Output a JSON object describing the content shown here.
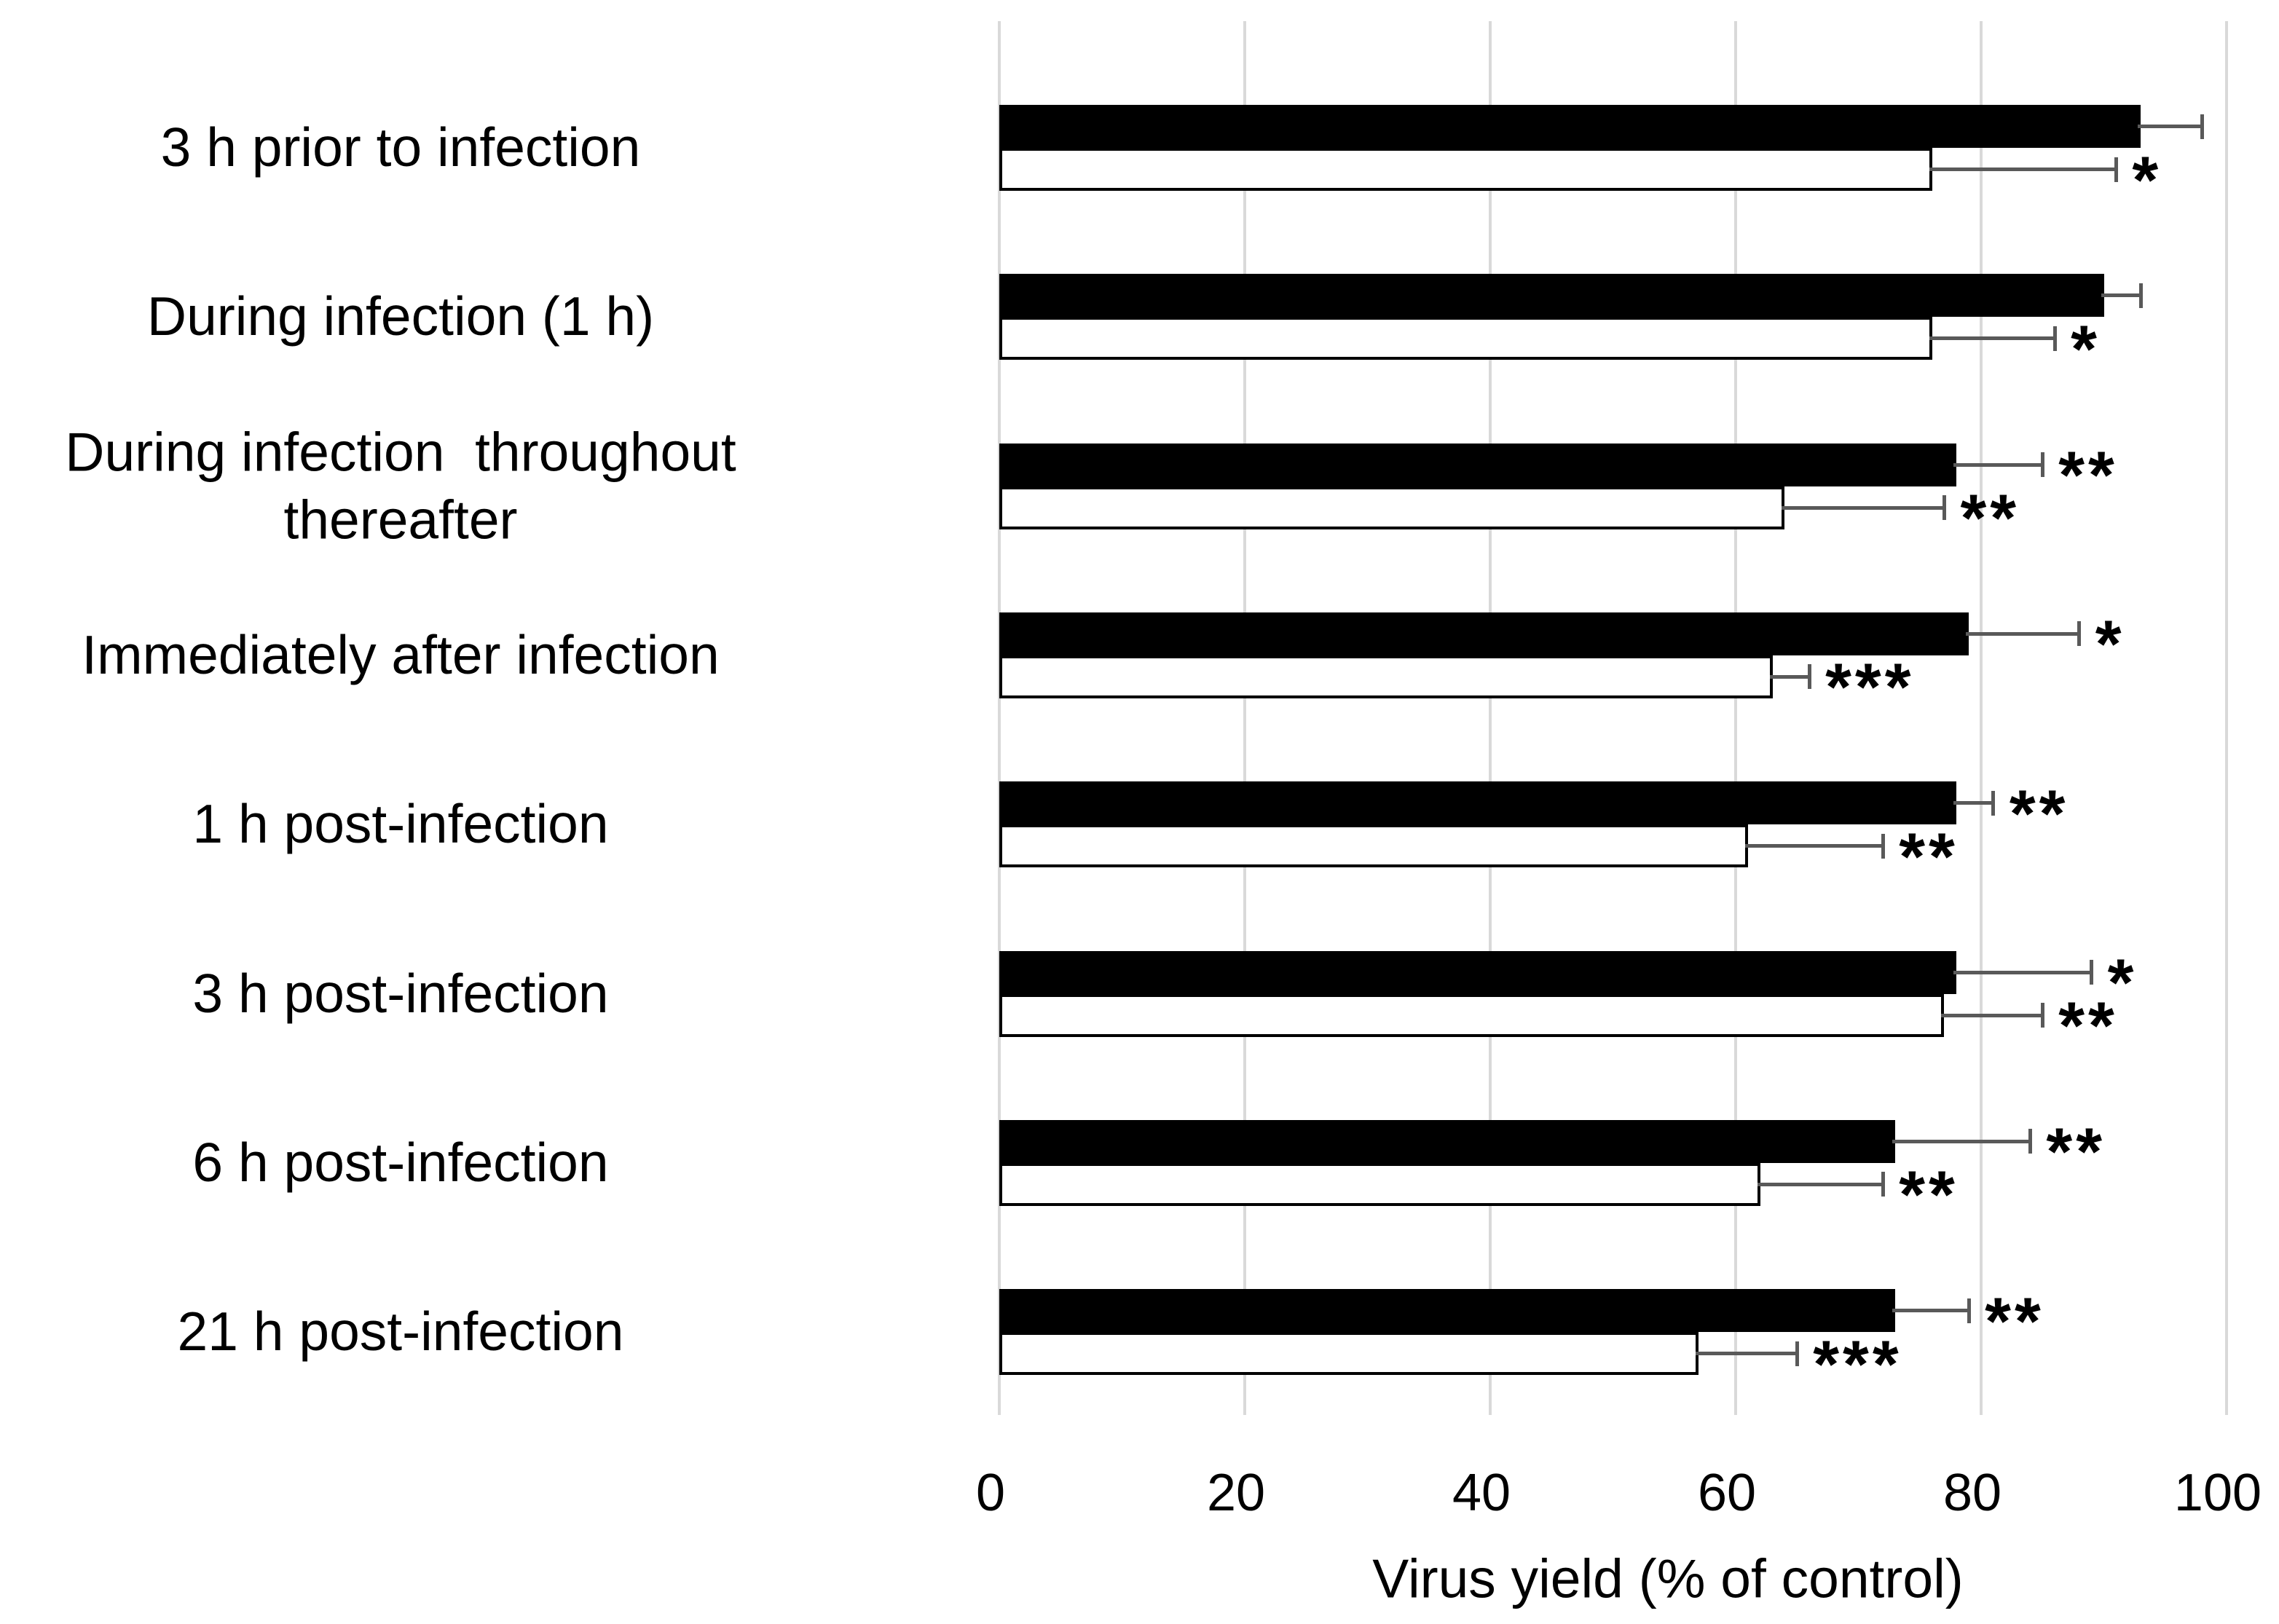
{
  "chart_data": {
    "type": "bar",
    "orientation": "horizontal",
    "title": "",
    "xlabel": "Virus yield (% of control)",
    "ylabel": "",
    "xlim": [
      0,
      100
    ],
    "xticks": [
      0,
      20,
      40,
      60,
      80,
      100
    ],
    "xtick_labels": [
      "0",
      "20",
      "40",
      "60",
      "80",
      "100"
    ],
    "grid": "vertical-major",
    "gridline_color": "#d9d9d9",
    "error_bar_color": "#595959",
    "bar_fill_black": "#000000",
    "bar_fill_white": "#ffffff",
    "categories": [
      "3 h prior to infection",
      "During infection (1 h)",
      "During infection  throughout\nthereafter",
      "Immediately after infection",
      "1 h post-infection",
      "3 h post-infection",
      "6 h post-infection",
      "21 h post-infection"
    ],
    "series": [
      {
        "name": "black (filled) bars",
        "fill": "#000000",
        "values": [
          93,
          90,
          78,
          79,
          78,
          78,
          73,
          73
        ],
        "error_caps": [
          98,
          93,
          85,
          88,
          81,
          89,
          84,
          79
        ],
        "significance": [
          "",
          "",
          "**",
          "*",
          "**",
          "*",
          "**",
          "**"
        ]
      },
      {
        "name": "white (open) bars",
        "fill": "#ffffff",
        "values": [
          76,
          76,
          64,
          63,
          61,
          77,
          62,
          57
        ],
        "error_caps": [
          91,
          86,
          77,
          66,
          72,
          85,
          72,
          65
        ],
        "significance": [
          "*",
          "*",
          "**",
          "***",
          "**",
          "**",
          "**",
          "***"
        ]
      }
    ],
    "legend": "none"
  },
  "axis": {
    "title": "Virus yield (% of control)"
  }
}
